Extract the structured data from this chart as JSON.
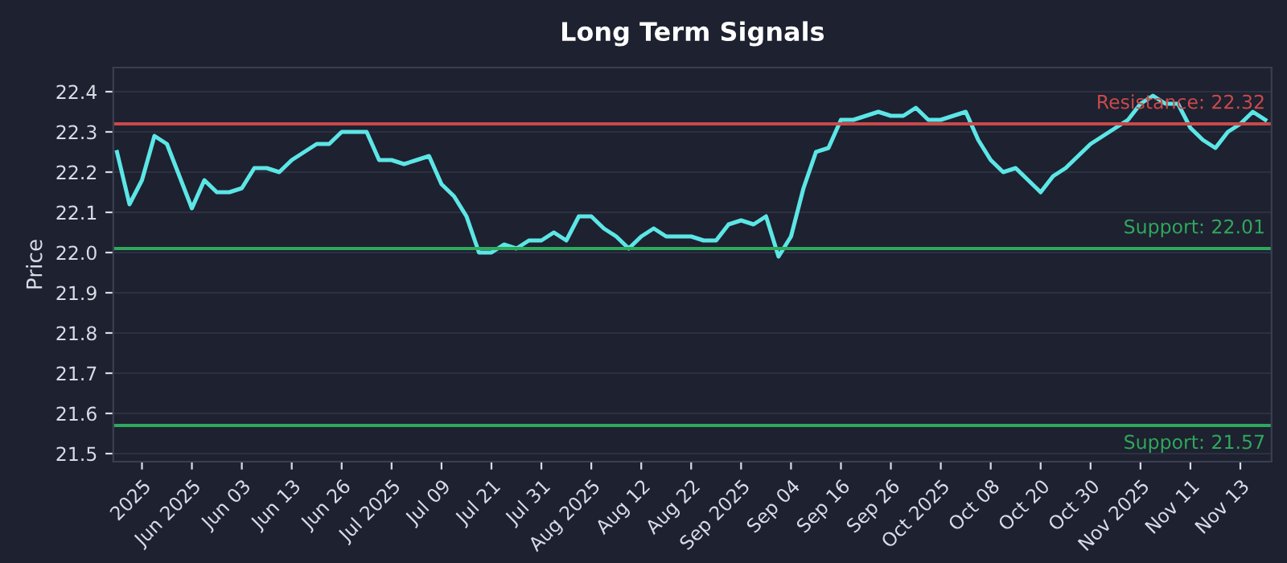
{
  "chart_data": {
    "type": "line",
    "title": "Long Term Signals",
    "ylabel": "Price",
    "categories": [
      null,
      null,
      "2025",
      null,
      null,
      null,
      "Jun 2025",
      null,
      null,
      null,
      "Jun 03",
      null,
      null,
      null,
      "Jun 13",
      null,
      null,
      null,
      "Jun 26",
      null,
      null,
      null,
      "Jul 2025",
      null,
      null,
      null,
      "Jul 09",
      null,
      null,
      null,
      "Jul 21",
      null,
      null,
      null,
      "Jul 31",
      null,
      null,
      null,
      "Aug 2025",
      null,
      null,
      null,
      "Aug 12",
      null,
      null,
      null,
      "Aug 22",
      null,
      null,
      null,
      "Sep 2025",
      null,
      null,
      null,
      "Sep 04",
      null,
      null,
      null,
      "Sep 16",
      null,
      null,
      null,
      "Sep 26",
      null,
      null,
      null,
      "Oct 2025",
      null,
      null,
      null,
      "Oct 08",
      null,
      null,
      null,
      "Oct 20",
      null,
      null,
      null,
      "Oct 30",
      null,
      null,
      null,
      "Nov 2025",
      null,
      null,
      null,
      "Nov 11",
      null,
      null,
      null,
      "Nov 13",
      null,
      null
    ],
    "series": [
      {
        "color": "#5ce6e6",
        "values": [
          22.25,
          22.12,
          22.18,
          22.29,
          22.27,
          22.19,
          22.11,
          22.18,
          22.15,
          22.15,
          22.16,
          22.21,
          22.21,
          22.2,
          22.23,
          22.25,
          22.27,
          22.27,
          22.3,
          22.3,
          22.3,
          22.23,
          22.23,
          22.22,
          22.23,
          22.24,
          22.17,
          22.14,
          22.09,
          22.0,
          22.0,
          22.02,
          22.01,
          22.03,
          22.03,
          22.05,
          22.03,
          22.09,
          22.09,
          22.06,
          22.04,
          22.01,
          22.04,
          22.06,
          22.04,
          22.04,
          22.04,
          22.03,
          22.03,
          22.07,
          22.08,
          22.07,
          22.09,
          21.99,
          22.04,
          22.16,
          22.25,
          22.26,
          22.33,
          22.33,
          22.34,
          22.35,
          22.34,
          22.34,
          22.36,
          22.33,
          22.33,
          22.34,
          22.35,
          22.28,
          22.23,
          22.2,
          22.21,
          22.18,
          22.15,
          22.19,
          22.21,
          22.24,
          22.27,
          22.29,
          22.31,
          22.33,
          22.37,
          22.39,
          22.37,
          22.37,
          22.31,
          22.28,
          22.26,
          22.3,
          22.32,
          22.35,
          22.33
        ]
      }
    ],
    "ylim": [
      21.48,
      22.46
    ],
    "yticks": [
      21.5,
      21.6,
      21.7,
      21.8,
      21.9,
      {
        "value": 22.0,
        "label": "22.0"
      },
      22.1,
      22.2,
      22.3,
      22.4
    ],
    "ref_lines": [
      {
        "axis": "y",
        "value": 22.32,
        "label": "Resistance: 22.32",
        "color": "#c94a4a"
      },
      {
        "axis": "y",
        "value": 22.01,
        "label": "Support: 22.01",
        "color": "#2ea85c"
      },
      {
        "axis": "y",
        "value": 21.57,
        "label": "Support: 21.57",
        "color": "#2ea85c"
      }
    ],
    "grid": "y",
    "legend": false
  }
}
